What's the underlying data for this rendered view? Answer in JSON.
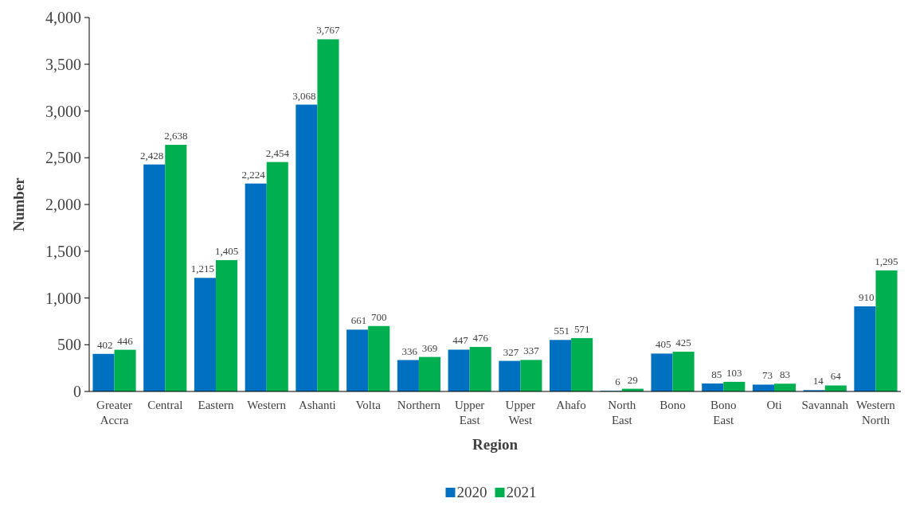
{
  "chart_data": {
    "type": "bar",
    "xlabel": "Region",
    "ylabel": "Number",
    "categories": [
      "Greater Accra",
      "Central",
      "Eastern",
      "Western",
      "Ashanti",
      "Volta",
      "Northern",
      "Upper East",
      "Upper West",
      "Ahafo",
      "North East",
      "Bono",
      "Bono East",
      "Oti",
      "Savannah",
      "Western North"
    ],
    "series": [
      {
        "name": "2020",
        "color": "#0070c0",
        "values": [
          402,
          2428,
          1215,
          2224,
          3068,
          661,
          336,
          447,
          327,
          551,
          6,
          405,
          85,
          73,
          14,
          910
        ],
        "value_labels": [
          "402",
          "2,428",
          "1,215",
          "2,224",
          "3,068",
          "661",
          "336",
          "447",
          "327",
          "551",
          "6",
          "405",
          "85",
          "73",
          "14",
          "910"
        ]
      },
      {
        "name": "2021",
        "color": "#00b050",
        "values": [
          446,
          2638,
          1405,
          2454,
          3767,
          700,
          369,
          476,
          337,
          571,
          29,
          425,
          103,
          83,
          64,
          1295
        ],
        "value_labels": [
          "446",
          "2,638",
          "1,405",
          "2,454",
          "3,767",
          "700",
          "369",
          "476",
          "337",
          "571",
          "29",
          "425",
          "103",
          "83",
          "64",
          "1,295"
        ]
      }
    ],
    "ylim": [
      0,
      4000
    ],
    "yticks": [
      {
        "value": 0,
        "label": "0"
      },
      {
        "value": 500,
        "label": "500"
      },
      {
        "value": 1000,
        "label": "1,000"
      },
      {
        "value": 1500,
        "label": "1,500"
      },
      {
        "value": 2000,
        "label": "2,000"
      },
      {
        "value": 2500,
        "label": "2,500"
      },
      {
        "value": 3000,
        "label": "3,000"
      },
      {
        "value": 3500,
        "label": "3,500"
      },
      {
        "value": 4000,
        "label": "4,000"
      }
    ],
    "grid": false,
    "legend": "bottom"
  }
}
